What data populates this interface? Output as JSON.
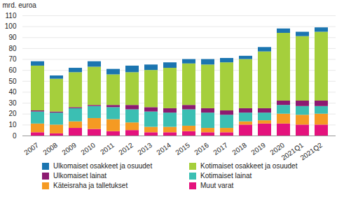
{
  "chart_data": {
    "type": "bar",
    "stacked": true,
    "grid": true,
    "y_label": "mrd. euroa",
    "categories": [
      "2007",
      "2008",
      "2009",
      "2010",
      "2011",
      "2012",
      "2013",
      "2014",
      "2015",
      "2016",
      "2017",
      "2018",
      "2019",
      "2020",
      "2021Q1",
      "2021Q2"
    ],
    "ylim": [
      0,
      110
    ],
    "yticks": [
      0,
      10,
      20,
      30,
      40,
      50,
      60,
      70,
      80,
      90,
      100,
      110
    ],
    "series": [
      {
        "name": "Muut varat",
        "color": "#e4127d",
        "values": [
          3,
          2,
          7,
          6,
          4,
          5,
          3,
          3,
          4,
          3,
          3,
          10,
          11,
          11,
          10,
          10
        ]
      },
      {
        "name": "Käteisraha ja talletukset",
        "color": "#f59a23",
        "values": [
          8,
          8,
          6,
          10,
          11,
          7,
          5,
          5,
          5,
          4,
          4,
          3,
          3,
          9,
          9,
          10
        ]
      },
      {
        "name": "Kotimaiset lainat",
        "color": "#3bbfb3",
        "values": [
          11,
          11,
          12,
          11,
          11,
          12,
          14,
          13,
          15,
          14,
          12,
          8,
          7,
          8,
          8,
          7
        ]
      },
      {
        "name": "Ulkomaiset lainat",
        "color": "#8c1a70",
        "values": [
          1,
          1,
          1,
          1,
          2,
          4,
          4,
          4,
          4,
          4,
          4,
          4,
          4,
          4,
          5,
          5
        ]
      },
      {
        "name": "Kotimaiset osakkeet ja osuudet",
        "color": "#a5cf3c",
        "values": [
          41,
          30,
          32,
          35,
          28,
          30,
          34,
          37,
          38,
          40,
          44,
          45,
          52,
          62,
          59,
          63
        ]
      },
      {
        "name": "Ulkomaiset osakkeet ja osuudet",
        "color": "#1b75b0",
        "values": [
          4,
          3,
          4,
          5,
          5,
          6,
          5,
          5,
          4,
          5,
          4,
          3,
          4,
          4,
          4,
          4
        ]
      }
    ]
  }
}
